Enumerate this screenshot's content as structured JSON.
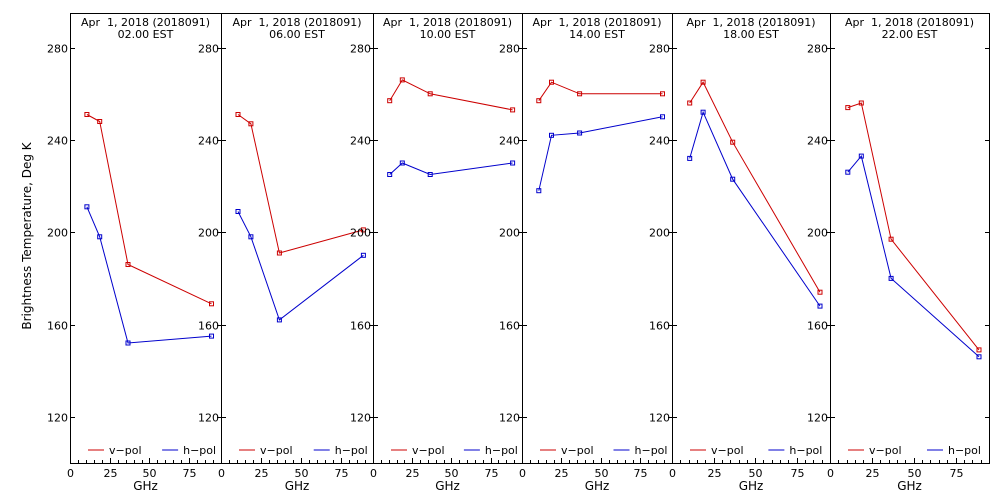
{
  "y_axis_label": "Brightness Temperature, Deg K",
  "chart_data": {
    "type": "line",
    "ylabel": "Brightness Temperature, Deg K",
    "xlabel": "GHz",
    "ylim": [
      100,
      295
    ],
    "xlim": [
      0,
      95
    ],
    "yticks": [
      120,
      160,
      200,
      240,
      280
    ],
    "xticks": [
      0,
      25,
      50,
      75
    ],
    "legend": {
      "placement": "bottom",
      "entries": [
        "v−pol",
        "h−pol"
      ]
    },
    "colors": {
      "v-pol": "#cc0000",
      "h-pol": "#0000cc"
    },
    "panels": [
      {
        "title_line1": "Apr  1, 2018 (2018091)",
        "title_line2": "02.00 EST",
        "series": [
          {
            "name": "v−pol",
            "x": [
              10.65,
              18.7,
              36.5,
              89.0
            ],
            "y": [
              251,
              248,
              186,
              169
            ]
          },
          {
            "name": "h−pol",
            "x": [
              10.65,
              18.7,
              36.5,
              89.0
            ],
            "y": [
              211,
              198,
              152,
              155
            ]
          }
        ]
      },
      {
        "title_line1": "Apr  1, 2018 (2018091)",
        "title_line2": "06.00 EST",
        "series": [
          {
            "name": "v−pol",
            "x": [
              10.65,
              18.7,
              36.5,
              89.0
            ],
            "y": [
              251,
              247,
              191,
              201
            ]
          },
          {
            "name": "h−pol",
            "x": [
              10.65,
              18.7,
              36.5,
              89.0
            ],
            "y": [
              209,
              198,
              162,
              190
            ]
          }
        ]
      },
      {
        "title_line1": "Apr  1, 2018 (2018091)",
        "title_line2": "10.00 EST",
        "series": [
          {
            "name": "v−pol",
            "x": [
              10.65,
              18.7,
              36.5,
              89.0
            ],
            "y": [
              257,
              266,
              260,
              253
            ]
          },
          {
            "name": "h−pol",
            "x": [
              10.65,
              18.7,
              36.5,
              89.0
            ],
            "y": [
              225,
              230,
              225,
              230
            ]
          }
        ]
      },
      {
        "title_line1": "Apr  1, 2018 (2018091)",
        "title_line2": "14.00 EST",
        "series": [
          {
            "name": "v−pol",
            "x": [
              10.65,
              18.7,
              36.5,
              89.0
            ],
            "y": [
              257,
              265,
              260,
              260
            ]
          },
          {
            "name": "h−pol",
            "x": [
              10.65,
              18.7,
              36.5,
              89.0
            ],
            "y": [
              218,
              242,
              243,
              250
            ]
          }
        ]
      },
      {
        "title_line1": "Apr  1, 2018 (2018091)",
        "title_line2": "18.00 EST",
        "series": [
          {
            "name": "v−pol",
            "x": [
              10.65,
              18.7,
              36.5,
              89.0
            ],
            "y": [
              256,
              265,
              239,
              174
            ]
          },
          {
            "name": "h−pol",
            "x": [
              10.65,
              18.7,
              36.5,
              89.0
            ],
            "y": [
              232,
              252,
              223,
              168
            ]
          }
        ]
      },
      {
        "title_line1": "Apr  1, 2018 (2018091)",
        "title_line2": "22.00 EST",
        "series": [
          {
            "name": "v−pol",
            "x": [
              10.65,
              18.7,
              36.5,
              89.0
            ],
            "y": [
              254,
              256,
              197,
              149
            ]
          },
          {
            "name": "h−pol",
            "x": [
              10.65,
              18.7,
              36.5,
              89.0
            ],
            "y": [
              226,
              233,
              180,
              146
            ]
          }
        ]
      }
    ]
  }
}
